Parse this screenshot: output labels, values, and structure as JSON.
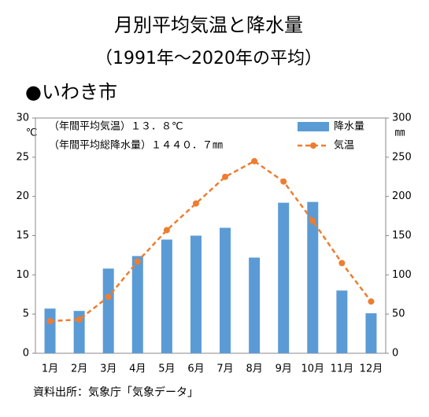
{
  "chart_data": {
    "type": "bar-line",
    "title": "月別平均気温と降水量",
    "subtitle": "（1991年～2020年の平均）",
    "location": "●いわき市",
    "y_unit": "℃",
    "y2_unit": "㎜",
    "annotations": [
      "（年間平均気温）１３．８℃",
      "（年間平均総降水量）１４４０．７㎜"
    ],
    "source": "資料出所：気象庁「気象データ」",
    "categories": [
      "1月",
      "2月",
      "3月",
      "4月",
      "5月",
      "6月",
      "7月",
      "8月",
      "9月",
      "10月",
      "11月",
      "12月"
    ],
    "series": [
      {
        "name": "降水量",
        "type": "bar",
        "axis": "y2",
        "color": "#5b9bd5",
        "values": [
          57,
          54,
          108,
          124,
          145,
          150,
          160,
          122,
          192,
          193,
          80,
          51
        ]
      },
      {
        "name": "気温",
        "type": "line",
        "axis": "y",
        "color": "#ed7d31",
        "values": [
          4.1,
          4.3,
          7.2,
          11.7,
          15.7,
          19.1,
          22.5,
          24.5,
          21.9,
          16.9,
          11.5,
          6.6
        ]
      }
    ],
    "ylim": [
      0,
      30
    ],
    "yticks": [
      0,
      5,
      10,
      15,
      20,
      25,
      30
    ],
    "y2lim": [
      0,
      300
    ],
    "y2ticks": [
      0,
      50,
      100,
      150,
      200,
      250,
      300
    ],
    "grid": false,
    "legend": "top-right"
  }
}
